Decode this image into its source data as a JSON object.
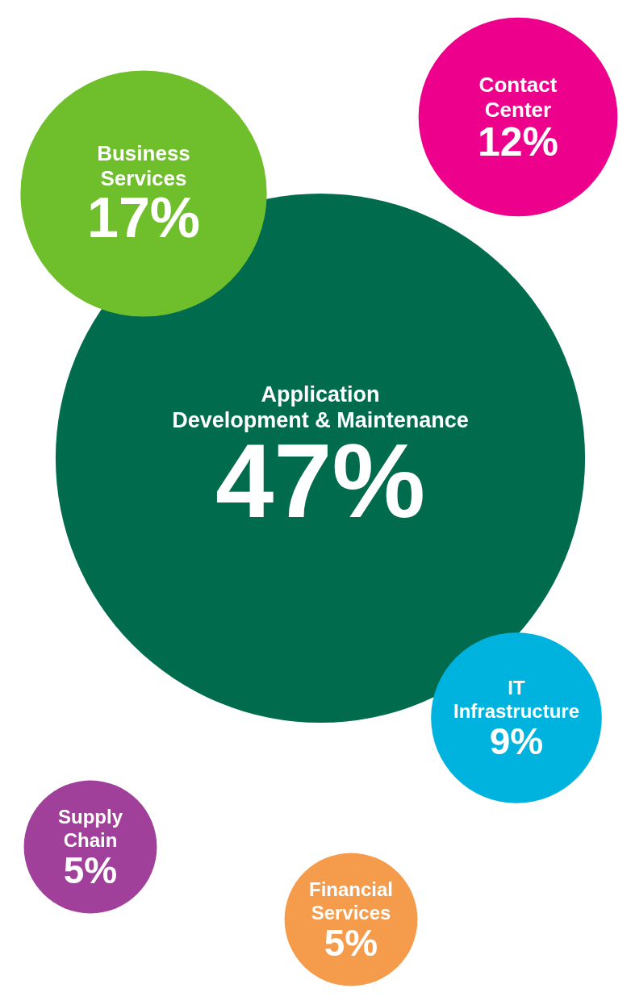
{
  "chart_data": {
    "type": "other",
    "categories": [
      "Contact Center",
      "Business Services",
      "Application Development & Maintenance",
      "IT Infrastructure",
      "Supply Chain",
      "Financial Services"
    ],
    "values": [
      12,
      17,
      47,
      9,
      5,
      5
    ],
    "value_labels": [
      "12%",
      "17%",
      "47%",
      "9%",
      "5%",
      "5%"
    ],
    "colors": [
      "#ec008c",
      "#6fbe2c",
      "#006b4d",
      "#00b3de",
      "#a0409a",
      "#f59c4c"
    ]
  }
}
